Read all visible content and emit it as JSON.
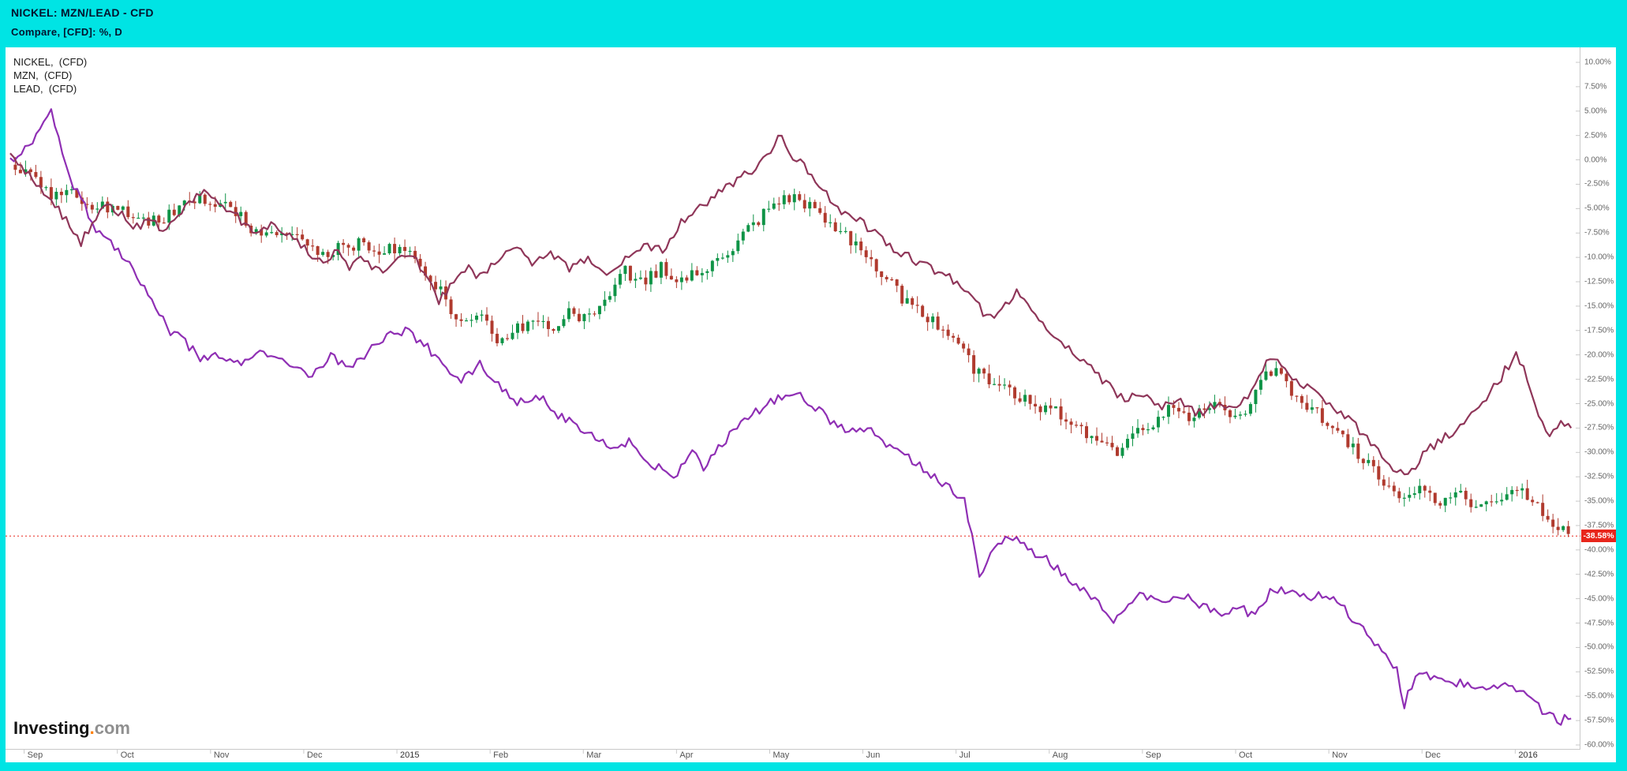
{
  "header": {
    "line1": "NICKEL: MZN/LEAD - CFD",
    "line2": "Compare, [CFD]: %, D",
    "bg_color": "#00e4e4",
    "text_color": "#03142e"
  },
  "legend": {
    "items": [
      {
        "label": "NICKEL,  (CFD)"
      },
      {
        "label": "MZN,  (CFD)"
      },
      {
        "label": "LEAD,  (CFD)"
      }
    ]
  },
  "logo": {
    "text": "Investing",
    "dot": ".",
    "suffix": "com"
  },
  "colors": {
    "frame": "#00e4e4",
    "plot_background": "#ffffff",
    "axis_line": "#c9c9c9",
    "axis_text": "#666666",
    "last_price_red": "#e8261c"
  },
  "chart_data": {
    "type": "mixed",
    "title": "NICKEL / MZN / LEAD percent change overlay, Sep 2014 - Jan 2016, daily",
    "y_axis": {
      "max": 10,
      "min": -60,
      "tick_step": 2.5,
      "unit": "%"
    },
    "y_ticks": [
      "10.00%",
      "7.50%",
      "5.00%",
      "2.50%",
      "0.00%",
      "-2.50%",
      "-5.00%",
      "-7.50%",
      "-10.00%",
      "-12.50%",
      "-15.00%",
      "-17.50%",
      "-20.00%",
      "-22.50%",
      "-25.00%",
      "-27.50%",
      "-30.00%",
      "-32.50%",
      "-35.00%",
      "-37.50%",
      "-40.00%",
      "-42.50%",
      "-45.00%",
      "-47.50%",
      "-50.00%",
      "-52.50%",
      "-55.00%",
      "-57.50%",
      "-60.00%"
    ],
    "x_ticks": [
      {
        "label": "Sep",
        "m": 0
      },
      {
        "label": "Oct",
        "m": 1
      },
      {
        "label": "Nov",
        "m": 2
      },
      {
        "label": "Dec",
        "m": 3
      },
      {
        "label": "2015",
        "m": 4
      },
      {
        "label": "Feb",
        "m": 5
      },
      {
        "label": "Mar",
        "m": 6
      },
      {
        "label": "Apr",
        "m": 7
      },
      {
        "label": "May",
        "m": 8
      },
      {
        "label": "Jun",
        "m": 9
      },
      {
        "label": "Jul",
        "m": 10
      },
      {
        "label": "Aug",
        "m": 11
      },
      {
        "label": "Sep",
        "m": 12
      },
      {
        "label": "Oct",
        "m": 13
      },
      {
        "label": "Nov",
        "m": 14
      },
      {
        "label": "Dec",
        "m": 15
      },
      {
        "label": "2016",
        "m": 16
      }
    ],
    "last_value": {
      "value": -38.58,
      "label": "-38.58%",
      "color": "#e8261c",
      "series": "NICKEL"
    },
    "series": [
      {
        "id": "nickel",
        "name": "NICKEL (CFD)",
        "type": "candlestick",
        "up_color": "#0f9447",
        "down_color": "#b03a2e",
        "anchors": [
          [
            -0.15,
            -0.5
          ],
          [
            0.1,
            -2.0
          ],
          [
            0.3,
            -3.5
          ],
          [
            0.5,
            -3.0
          ],
          [
            0.7,
            -4.5
          ],
          [
            0.9,
            -5.0
          ],
          [
            1.1,
            -5.5
          ],
          [
            1.3,
            -6.5
          ],
          [
            1.5,
            -6.0
          ],
          [
            1.7,
            -4.5
          ],
          [
            1.9,
            -4.0
          ],
          [
            2.1,
            -4.5
          ],
          [
            2.3,
            -5.5
          ],
          [
            2.45,
            -8.0
          ],
          [
            2.6,
            -7.0
          ],
          [
            2.8,
            -7.5
          ],
          [
            3.0,
            -8.5
          ],
          [
            3.2,
            -9.5
          ],
          [
            3.4,
            -9.0
          ],
          [
            3.6,
            -8.5
          ],
          [
            3.8,
            -9.5
          ],
          [
            4.0,
            -9.0
          ],
          [
            4.2,
            -10.0
          ],
          [
            4.4,
            -12.5
          ],
          [
            4.6,
            -15.5
          ],
          [
            4.75,
            -17.0
          ],
          [
            4.9,
            -16.0
          ],
          [
            5.1,
            -19.0
          ],
          [
            5.25,
            -17.5
          ],
          [
            5.45,
            -16.5
          ],
          [
            5.65,
            -17.5
          ],
          [
            5.85,
            -15.5
          ],
          [
            6.05,
            -16.5
          ],
          [
            6.25,
            -14.5
          ],
          [
            6.45,
            -11.5
          ],
          [
            6.65,
            -12.5
          ],
          [
            6.85,
            -11.0
          ],
          [
            7.05,
            -12.5
          ],
          [
            7.25,
            -11.5
          ],
          [
            7.45,
            -10.5
          ],
          [
            7.65,
            -8.5
          ],
          [
            7.85,
            -6.5
          ],
          [
            8.05,
            -4.5
          ],
          [
            8.25,
            -3.5
          ],
          [
            8.45,
            -5.0
          ],
          [
            8.65,
            -6.5
          ],
          [
            8.85,
            -8.0
          ],
          [
            9.05,
            -10.5
          ],
          [
            9.25,
            -12.0
          ],
          [
            9.45,
            -14.5
          ],
          [
            9.65,
            -16.0
          ],
          [
            9.85,
            -17.0
          ],
          [
            10.05,
            -18.5
          ],
          [
            10.2,
            -21.5
          ],
          [
            10.4,
            -23.0
          ],
          [
            10.6,
            -24.0
          ],
          [
            10.8,
            -25.0
          ],
          [
            11.0,
            -25.5
          ],
          [
            11.2,
            -26.5
          ],
          [
            11.4,
            -28.0
          ],
          [
            11.6,
            -29.5
          ],
          [
            11.75,
            -30.0
          ],
          [
            11.9,
            -28.5
          ],
          [
            12.1,
            -27.0
          ],
          [
            12.3,
            -25.5
          ],
          [
            12.5,
            -26.5
          ],
          [
            12.7,
            -25.0
          ],
          [
            12.9,
            -26.0
          ],
          [
            13.1,
            -25.5
          ],
          [
            13.3,
            -22.5
          ],
          [
            13.45,
            -21.5
          ],
          [
            13.6,
            -24.0
          ],
          [
            13.8,
            -25.5
          ],
          [
            14.0,
            -27.0
          ],
          [
            14.2,
            -29.0
          ],
          [
            14.4,
            -31.0
          ],
          [
            14.6,
            -33.0
          ],
          [
            14.8,
            -34.5
          ],
          [
            15.0,
            -34.0
          ],
          [
            15.2,
            -35.0
          ],
          [
            15.4,
            -34.5
          ],
          [
            15.6,
            -35.5
          ],
          [
            15.8,
            -34.5
          ],
          [
            16.0,
            -33.5
          ],
          [
            16.15,
            -34.5
          ],
          [
            16.3,
            -36.0
          ],
          [
            16.45,
            -37.5
          ],
          [
            16.6,
            -38.58
          ]
        ]
      },
      {
        "id": "mzn",
        "name": "MZN (CFD)",
        "type": "line",
        "color": "#8f2fb4",
        "anchors": [
          [
            -0.15,
            0.0
          ],
          [
            0.1,
            2.0
          ],
          [
            0.3,
            5.0
          ],
          [
            0.45,
            -1.0
          ],
          [
            0.6,
            -4.0
          ],
          [
            0.8,
            -7.5
          ],
          [
            1.0,
            -9.0
          ],
          [
            1.2,
            -11.5
          ],
          [
            1.4,
            -15.0
          ],
          [
            1.55,
            -17.5
          ],
          [
            1.7,
            -18.5
          ],
          [
            1.9,
            -20.5
          ],
          [
            2.1,
            -20.0
          ],
          [
            2.3,
            -21.0
          ],
          [
            2.5,
            -19.5
          ],
          [
            2.7,
            -20.5
          ],
          [
            2.9,
            -21.5
          ],
          [
            3.1,
            -22.0
          ],
          [
            3.3,
            -20.0
          ],
          [
            3.5,
            -21.5
          ],
          [
            3.7,
            -19.5
          ],
          [
            3.9,
            -18.0
          ],
          [
            4.1,
            -17.5
          ],
          [
            4.3,
            -19.0
          ],
          [
            4.5,
            -21.0
          ],
          [
            4.7,
            -22.5
          ],
          [
            4.9,
            -21.0
          ],
          [
            5.1,
            -23.0
          ],
          [
            5.3,
            -25.0
          ],
          [
            5.5,
            -24.0
          ],
          [
            5.7,
            -26.0
          ],
          [
            5.9,
            -27.0
          ],
          [
            6.1,
            -28.0
          ],
          [
            6.3,
            -29.5
          ],
          [
            6.5,
            -29.0
          ],
          [
            6.7,
            -31.0
          ],
          [
            7.0,
            -32.5
          ],
          [
            7.15,
            -30.0
          ],
          [
            7.3,
            -31.5
          ],
          [
            7.5,
            -29.0
          ],
          [
            7.7,
            -27.0
          ],
          [
            7.9,
            -25.5
          ],
          [
            8.1,
            -24.5
          ],
          [
            8.3,
            -24.0
          ],
          [
            8.5,
            -25.5
          ],
          [
            8.7,
            -27.0
          ],
          [
            8.9,
            -28.0
          ],
          [
            9.1,
            -27.5
          ],
          [
            9.3,
            -29.5
          ],
          [
            9.5,
            -30.5
          ],
          [
            9.7,
            -32.0
          ],
          [
            9.9,
            -33.5
          ],
          [
            10.1,
            -35.0
          ],
          [
            10.25,
            -43.0
          ],
          [
            10.4,
            -40.0
          ],
          [
            10.55,
            -38.5
          ],
          [
            10.7,
            -39.5
          ],
          [
            10.9,
            -40.5
          ],
          [
            11.1,
            -42.0
          ],
          [
            11.3,
            -43.5
          ],
          [
            11.5,
            -45.0
          ],
          [
            11.7,
            -47.5
          ],
          [
            11.85,
            -45.5
          ],
          [
            12.0,
            -44.5
          ],
          [
            12.2,
            -45.5
          ],
          [
            12.4,
            -44.5
          ],
          [
            12.6,
            -45.5
          ],
          [
            12.8,
            -46.5
          ],
          [
            13.0,
            -46.0
          ],
          [
            13.2,
            -46.5
          ],
          [
            13.4,
            -44.0
          ],
          [
            13.6,
            -44.5
          ],
          [
            13.8,
            -45.0
          ],
          [
            14.0,
            -44.5
          ],
          [
            14.2,
            -46.5
          ],
          [
            14.4,
            -48.5
          ],
          [
            14.6,
            -50.5
          ],
          [
            14.72,
            -52.0
          ],
          [
            14.8,
            -56.0
          ],
          [
            14.95,
            -52.5
          ],
          [
            15.1,
            -53.0
          ],
          [
            15.3,
            -54.0
          ],
          [
            15.5,
            -53.5
          ],
          [
            15.7,
            -54.5
          ],
          [
            15.9,
            -54.0
          ],
          [
            16.1,
            -55.0
          ],
          [
            16.3,
            -56.5
          ],
          [
            16.45,
            -57.5
          ],
          [
            16.6,
            -57.3
          ]
        ]
      },
      {
        "id": "lead",
        "name": "LEAD (CFD)",
        "type": "line",
        "color": "#8f3659",
        "anchors": [
          [
            -0.15,
            0.5
          ],
          [
            0.05,
            -1.5
          ],
          [
            0.2,
            -3.0
          ],
          [
            0.4,
            -5.5
          ],
          [
            0.6,
            -8.5
          ],
          [
            0.75,
            -6.5
          ],
          [
            0.9,
            -4.5
          ],
          [
            1.05,
            -5.5
          ],
          [
            1.2,
            -7.0
          ],
          [
            1.35,
            -6.0
          ],
          [
            1.5,
            -7.5
          ],
          [
            1.65,
            -5.5
          ],
          [
            1.8,
            -4.0
          ],
          [
            1.95,
            -3.0
          ],
          [
            2.1,
            -4.5
          ],
          [
            2.3,
            -6.0
          ],
          [
            2.5,
            -7.5
          ],
          [
            2.7,
            -6.5
          ],
          [
            2.85,
            -8.0
          ],
          [
            3.0,
            -9.0
          ],
          [
            3.2,
            -10.5
          ],
          [
            3.35,
            -9.5
          ],
          [
            3.5,
            -11.0
          ],
          [
            3.65,
            -10.0
          ],
          [
            3.8,
            -11.5
          ],
          [
            4.0,
            -10.5
          ],
          [
            4.15,
            -9.5
          ],
          [
            4.3,
            -12.0
          ],
          [
            4.45,
            -14.5
          ],
          [
            4.6,
            -12.5
          ],
          [
            4.75,
            -11.0
          ],
          [
            4.9,
            -12.0
          ],
          [
            5.05,
            -10.5
          ],
          [
            5.25,
            -9.0
          ],
          [
            5.45,
            -10.5
          ],
          [
            5.65,
            -9.5
          ],
          [
            5.85,
            -11.0
          ],
          [
            6.05,
            -10.0
          ],
          [
            6.25,
            -11.5
          ],
          [
            6.45,
            -10.0
          ],
          [
            6.65,
            -8.5
          ],
          [
            6.85,
            -9.5
          ],
          [
            7.05,
            -6.5
          ],
          [
            7.25,
            -5.0
          ],
          [
            7.45,
            -3.5
          ],
          [
            7.65,
            -2.0
          ],
          [
            7.85,
            -1.0
          ],
          [
            8.0,
            0.5
          ],
          [
            8.1,
            2.5
          ],
          [
            8.2,
            1.0
          ],
          [
            8.35,
            -0.5
          ],
          [
            8.5,
            -2.0
          ],
          [
            8.65,
            -4.0
          ],
          [
            8.8,
            -5.5
          ],
          [
            9.0,
            -6.5
          ],
          [
            9.2,
            -8.0
          ],
          [
            9.4,
            -9.5
          ],
          [
            9.6,
            -10.5
          ],
          [
            9.8,
            -11.5
          ],
          [
            10.0,
            -12.5
          ],
          [
            10.2,
            -14.5
          ],
          [
            10.35,
            -16.5
          ],
          [
            10.5,
            -15.0
          ],
          [
            10.65,
            -13.5
          ],
          [
            10.8,
            -15.5
          ],
          [
            11.0,
            -17.5
          ],
          [
            11.2,
            -19.5
          ],
          [
            11.4,
            -21.0
          ],
          [
            11.6,
            -23.0
          ],
          [
            11.8,
            -24.5
          ],
          [
            12.0,
            -24.0
          ],
          [
            12.2,
            -25.5
          ],
          [
            12.4,
            -24.5
          ],
          [
            12.6,
            -26.0
          ],
          [
            12.8,
            -25.0
          ],
          [
            13.0,
            -25.5
          ],
          [
            13.2,
            -23.5
          ],
          [
            13.35,
            -20.5
          ],
          [
            13.5,
            -21.0
          ],
          [
            13.65,
            -22.5
          ],
          [
            13.8,
            -23.5
          ],
          [
            14.0,
            -25.0
          ],
          [
            14.2,
            -26.5
          ],
          [
            14.4,
            -28.5
          ],
          [
            14.55,
            -30.0
          ],
          [
            14.7,
            -31.5
          ],
          [
            14.85,
            -32.5
          ],
          [
            15.0,
            -30.5
          ],
          [
            15.15,
            -29.0
          ],
          [
            15.3,
            -28.0
          ],
          [
            15.5,
            -26.5
          ],
          [
            15.7,
            -24.5
          ],
          [
            15.9,
            -21.5
          ],
          [
            16.0,
            -20.0
          ],
          [
            16.1,
            -21.5
          ],
          [
            16.25,
            -26.0
          ],
          [
            16.35,
            -28.5
          ],
          [
            16.5,
            -27.0
          ],
          [
            16.6,
            -27.5
          ]
        ]
      }
    ]
  }
}
